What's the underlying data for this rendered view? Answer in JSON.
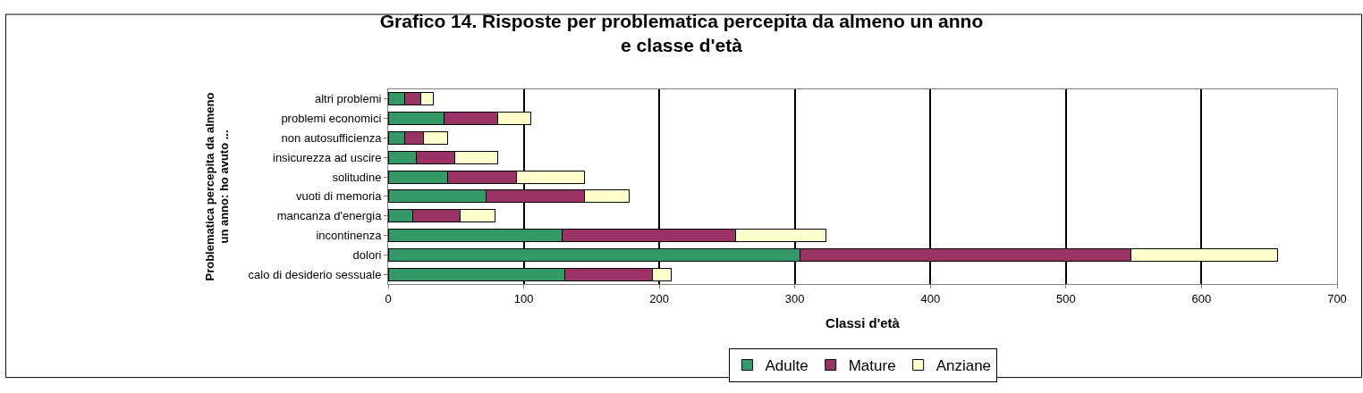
{
  "chart_data": {
    "type": "bar",
    "orientation": "horizontal",
    "stacked": true,
    "title": "Grafico 14. Risposte per problematica percepita da almeno un anno e classe d'età",
    "xlabel": "Classi d'età",
    "ylabel": "Problematica percepita da almeno un anno: ho avuto ...",
    "categories": [
      "altri problemi",
      "problemi economici",
      "non autosufficienza",
      "insicurezza ad uscire",
      "solitudine",
      "vuoti di memoria",
      "mancanza d'energia",
      "incontinenza",
      "dolori",
      "calo di desiderio sessuale"
    ],
    "series": [
      {
        "name": "Adulte",
        "color": "#339966",
        "values": [
          12,
          41,
          12,
          21,
          44,
          72,
          18,
          128,
          304,
          130
        ]
      },
      {
        "name": "Mature",
        "color": "#993366",
        "values": [
          12,
          40,
          14,
          28,
          51,
          73,
          35,
          128,
          244,
          65
        ]
      },
      {
        "name": "Anziane",
        "color": "#ffffcc",
        "values": [
          9,
          24,
          18,
          32,
          50,
          33,
          26,
          67,
          108,
          14
        ]
      }
    ],
    "xlim": [
      0,
      700
    ],
    "xticks": [
      0,
      100,
      200,
      300,
      400,
      500,
      600,
      700
    ],
    "grid": "x",
    "legend": "bottom"
  }
}
